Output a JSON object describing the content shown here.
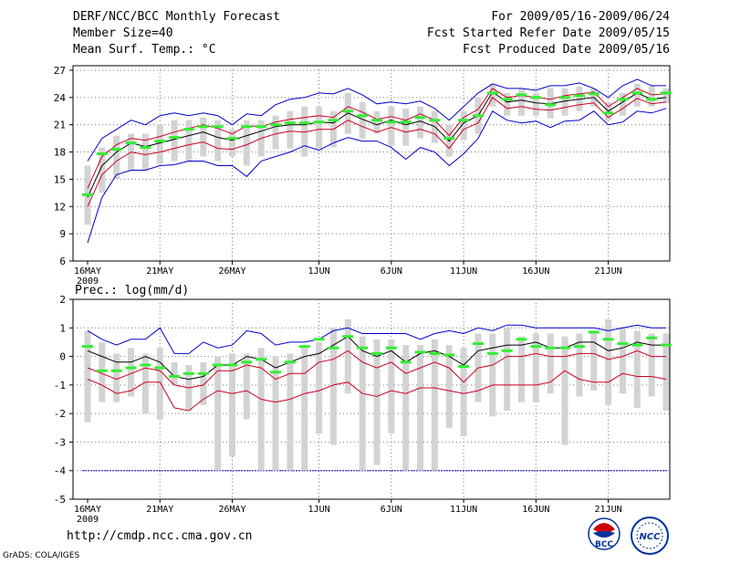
{
  "header": {
    "title": "DERF/NCC/BCC Monthly Forecast",
    "member_size": "Member Size=40",
    "variable": "Mean Surf. Temp.: °C",
    "forecast_range": "For 2009/05/16-2009/06/24",
    "start_date": "Fcst Started Refer Date 2009/05/15",
    "produced_date": "Fcst Produced Date 2009/05/16"
  },
  "footer": {
    "url": "http://cmdp.ncc.cma.gov.cn",
    "credit": "GrADS: COLA/IGES",
    "logo_bcc": "BCC",
    "logo_ncc": "NCC"
  },
  "colors": {
    "blue": "#0000cc",
    "red": "#cc0022",
    "green": "#33ee33",
    "box": "#d3d3d3",
    "mean": "#000000"
  },
  "chart_data": [
    {
      "type": "line",
      "ylabel": "",
      "ylim": [
        6,
        27.5
      ],
      "yticks": [
        6,
        9,
        12,
        15,
        18,
        21,
        24,
        27
      ],
      "xticks": [
        {
          "day": 1,
          "label": "16MAY",
          "sub": "2009"
        },
        {
          "day": 6,
          "label": "21MAY"
        },
        {
          "day": 11,
          "label": "26MAY"
        },
        {
          "day": 17,
          "label": "1JUN"
        },
        {
          "day": 22,
          "label": "6JUN"
        },
        {
          "day": 27,
          "label": "11JUN"
        },
        {
          "day": 32,
          "label": "16JUN"
        },
        {
          "day": 37,
          "label": "21JUN"
        }
      ],
      "grid": true,
      "series": {
        "max": [
          17,
          19.5,
          20.5,
          21.5,
          21,
          22,
          22.3,
          22,
          22.3,
          22,
          21,
          22.2,
          22,
          23.2,
          23.8,
          24,
          24.5,
          24.4,
          25,
          24.3,
          23.3,
          23.5,
          23.3,
          23.6,
          22.8,
          21.5,
          23,
          24.5,
          25.5,
          25,
          25,
          24.8,
          25.3,
          25.3,
          25.6,
          25,
          24,
          25.3,
          26,
          25.3,
          25.3
        ],
        "p90": [
          14,
          17.5,
          18.8,
          19.5,
          19.3,
          19.7,
          20.2,
          20.6,
          21,
          20.6,
          20,
          20.9,
          20.8,
          21.3,
          21.6,
          21.8,
          22,
          21.8,
          23,
          22.4,
          21.6,
          21.9,
          21.5,
          22.2,
          21.5,
          19.8,
          21.8,
          22.7,
          25,
          24,
          24.2,
          24,
          23.8,
          24.2,
          24.4,
          24.6,
          23,
          24,
          25,
          24.3,
          24.4
        ],
        "mean": [
          13,
          16.5,
          18,
          19,
          18.6,
          19,
          19.4,
          19.8,
          20.2,
          19.6,
          19.3,
          19.8,
          20.3,
          20.8,
          21,
          21,
          21.3,
          21.2,
          22.3,
          21.6,
          21,
          21.5,
          21,
          21.4,
          20.8,
          19.2,
          21.2,
          22,
          24.6,
          23.5,
          23.7,
          23.4,
          23.3,
          23.6,
          23.8,
          24,
          22.5,
          23.5,
          24.5,
          23.8,
          24
        ],
        "p10": [
          12,
          15.5,
          17,
          18,
          17.7,
          18,
          18.4,
          18.8,
          19.1,
          18.4,
          18.3,
          18.8,
          19.5,
          20,
          20.3,
          20.2,
          20.5,
          20.5,
          21.5,
          20.8,
          20.2,
          20.7,
          20.2,
          20.5,
          20,
          18.4,
          20.5,
          21.2,
          24,
          22.8,
          23,
          22.7,
          22.6,
          22.9,
          23.2,
          23.4,
          21.8,
          22.8,
          23.9,
          23.3,
          23.5
        ],
        "min": [
          8,
          13,
          15.5,
          16,
          16,
          16.5,
          16.6,
          17,
          17,
          16.5,
          16.5,
          15.3,
          17,
          17.5,
          18,
          18.7,
          18.2,
          19,
          19.6,
          19.2,
          19.2,
          18.5,
          17.2,
          18.5,
          18,
          16.5,
          17.8,
          19.5,
          22.5,
          21.5,
          21.2,
          21.4,
          20.7,
          21.4,
          21.5,
          22.5,
          21,
          21.3,
          22.5,
          22.3,
          22.8
        ],
        "box_low": [
          10,
          13.5,
          15,
          16,
          16,
          16.7,
          17,
          17,
          17.5,
          17,
          17.5,
          16.5,
          17.5,
          18.3,
          18.4,
          17.5,
          18.3,
          18.5,
          20,
          19.5,
          20,
          18.7,
          18.7,
          19.5,
          19,
          17.5,
          19.3,
          20,
          23,
          22,
          22,
          22,
          21.7,
          22,
          22.5,
          23,
          21.5,
          22,
          23,
          23,
          23.4
        ],
        "box_high": [
          16.5,
          18.5,
          19.8,
          20,
          20,
          21,
          21.5,
          21.5,
          21.8,
          21.5,
          20.5,
          21.5,
          21.5,
          22,
          22.5,
          23,
          23,
          22.5,
          24.5,
          23.5,
          22.5,
          23,
          22.8,
          23,
          22.5,
          21,
          22.5,
          24,
          25.5,
          24.5,
          25,
          24.5,
          25,
          25,
          25.2,
          25,
          23.5,
          24.5,
          25.5,
          25.3,
          25
        ],
        "green": [
          13.3,
          17.8,
          18.3,
          19,
          18.5,
          19.2,
          19.6,
          20.5,
          20.8,
          20.8,
          19.5,
          20.8,
          20.8,
          21,
          21.2,
          21.2,
          21.3,
          21.5,
          22.5,
          22,
          21.5,
          21.3,
          21.3,
          21.8,
          21.5,
          19.5,
          21.5,
          22,
          24.5,
          23.8,
          24.3,
          24,
          23.2,
          24,
          24.2,
          24.4,
          22.3,
          23.8,
          24.5,
          23.8,
          24.5
        ]
      }
    },
    {
      "type": "line",
      "title": "Prec.: log(mm/d)",
      "ylim": [
        -5,
        2
      ],
      "yticks": [
        -5,
        -4,
        -3,
        -2,
        -1,
        0,
        1,
        2
      ],
      "xticks": [
        {
          "day": 1,
          "label": "16MAY",
          "sub": "2009"
        },
        {
          "day": 6,
          "label": "21MAY"
        },
        {
          "day": 11,
          "label": "26MAY"
        },
        {
          "day": 17,
          "label": "1JUN"
        },
        {
          "day": 22,
          "label": "6JUN"
        },
        {
          "day": 27,
          "label": "11JUN"
        },
        {
          "day": 32,
          "label": "16JUN"
        },
        {
          "day": 37,
          "label": "21JUN"
        }
      ],
      "grid": true,
      "floor": -4,
      "series": {
        "max": [
          0.9,
          0.6,
          0.4,
          0.6,
          0.6,
          1.0,
          0.1,
          0.1,
          0.5,
          0.3,
          0.4,
          0.9,
          0.8,
          0.4,
          0.5,
          0.5,
          0.6,
          0.9,
          1.0,
          0.8,
          0.8,
          0.8,
          0.8,
          0.6,
          0.8,
          0.9,
          0.8,
          1.0,
          0.9,
          1.1,
          1.1,
          1.0,
          1.0,
          1.0,
          1.0,
          1.0,
          0.9,
          1.0,
          1.1,
          1.0,
          1.0
        ],
        "mean": [
          0.2,
          0,
          -0.2,
          -0.2,
          0,
          -0.2,
          -0.7,
          -0.8,
          -0.7,
          -0.3,
          -0.3,
          0,
          -0.1,
          -0.4,
          -0.2,
          0,
          0.1,
          0.4,
          0.7,
          0.2,
          0,
          0.2,
          -0.2,
          0.1,
          0.2,
          0,
          -0.3,
          0.2,
          0.3,
          0.4,
          0.4,
          0.5,
          0.3,
          0.3,
          0.5,
          0.5,
          0.2,
          0.3,
          0.5,
          0.4,
          0.4
        ],
        "p10": [
          -0.4,
          -0.6,
          -0.8,
          -0.6,
          -0.4,
          -0.5,
          -1.0,
          -1.1,
          -1.0,
          -0.5,
          -0.5,
          -0.3,
          -0.4,
          -0.8,
          -0.6,
          -0.6,
          -0.2,
          -0.1,
          0.2,
          -0.2,
          -0.4,
          -0.2,
          -0.6,
          -0.4,
          -0.2,
          -0.4,
          -0.9,
          -0.4,
          -0.3,
          0,
          0,
          0.1,
          0,
          0,
          0.1,
          0.1,
          -0.1,
          0,
          0.2,
          0,
          0
        ],
        "p02": [
          -0.8,
          -1.0,
          -1.3,
          -1.2,
          -0.9,
          -0.9,
          -1.8,
          -1.9,
          -1.5,
          -1.2,
          -1.3,
          -1.2,
          -1.5,
          -1.6,
          -1.5,
          -1.3,
          -1.2,
          -1.0,
          -0.9,
          -1.3,
          -1.4,
          -1.2,
          -1.3,
          -1.1,
          -1.1,
          -1.2,
          -1.3,
          -1.2,
          -1.0,
          -1.0,
          -1.0,
          -1.0,
          -0.9,
          -0.5,
          -0.8,
          -0.9,
          -0.9,
          -0.6,
          -0.7,
          -0.7,
          -0.8
        ],
        "box_low": [
          -2.3,
          -1.6,
          -1.6,
          -1.4,
          -2.0,
          -2.2,
          -1.0,
          -1.9,
          -1.7,
          -4.0,
          -3.5,
          -2.2,
          -4.0,
          -4.0,
          -4.0,
          -4.0,
          -2.7,
          -3.1,
          -1.3,
          -4.0,
          -3.8,
          -2.7,
          -4.0,
          -4.0,
          -4.0,
          -2.5,
          -2.8,
          -1.6,
          -2.1,
          -1.9,
          -1.6,
          -1.6,
          -1.3,
          -3.1,
          -1.4,
          -1.2,
          -1.7,
          -1.3,
          -1.8,
          -1.4,
          -1.9
        ],
        "box_high": [
          0.9,
          0.5,
          0.1,
          0.3,
          0.1,
          0.3,
          -0.2,
          -0.3,
          -0.2,
          0,
          0.1,
          0.1,
          0.3,
          0,
          0.1,
          0.3,
          0.5,
          1.0,
          1.3,
          0.7,
          0.6,
          0.6,
          0.4,
          0.4,
          0.6,
          0.4,
          0.3,
          0.8,
          0.8,
          1.0,
          0.7,
          0.8,
          0.8,
          0.7,
          0.8,
          0.8,
          1.3,
          1.0,
          0.9,
          0.8,
          0.8
        ],
        "green": [
          0.35,
          -0.5,
          -0.5,
          -0.4,
          -0.3,
          -0.4,
          -0.7,
          -0.6,
          -0.6,
          -0.3,
          -0.3,
          -0.2,
          -0.1,
          -0.55,
          -0.2,
          0.35,
          0.6,
          0.3,
          0.7,
          0.3,
          0.1,
          0.3,
          -0.2,
          0.15,
          0.1,
          0.05,
          -0.35,
          0.45,
          0.1,
          0.2,
          0.6,
          0.35,
          0.3,
          0.3,
          0.35,
          0.85,
          0.6,
          0.45,
          0.4,
          0.65,
          0.4
        ]
      }
    }
  ]
}
